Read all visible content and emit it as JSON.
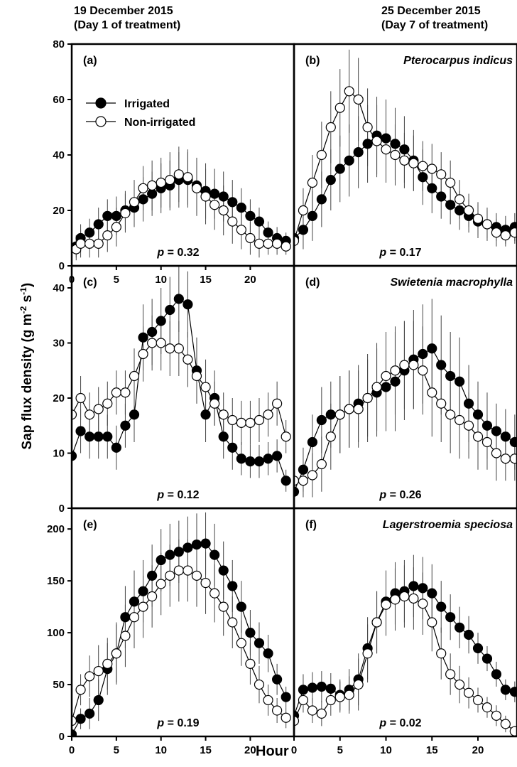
{
  "header": {
    "left_line1": "19 December 2015",
    "left_line2": "(Day 1 of treatment)",
    "right_line1": "25 December 2015",
    "right_line2": "(Day 7 of treatment)"
  },
  "axes": {
    "ylabel_main": "Sap flux density (g m",
    "ylabel_exp1": "-2",
    "ylabel_mid": " s",
    "ylabel_exp2": "-1",
    "ylabel_end": ")",
    "xlabel": "Hour"
  },
  "colors": {
    "irrigated": "#000000",
    "non_irrigated": "#ffffff",
    "line": "#000000"
  },
  "chart_data": [
    {
      "type": "line",
      "panel": "(a)",
      "species": "",
      "p_label": "p",
      "p_text": " = 0.32",
      "xlim": [
        0,
        24
      ],
      "ylim": [
        0,
        80
      ],
      "yticks": [
        0,
        20,
        40,
        60,
        80
      ],
      "xticks": [
        0,
        5,
        10,
        15,
        20
      ],
      "legend": [
        {
          "name": "Irrigated",
          "marker": "filled"
        },
        {
          "name": "Non-irrigated",
          "marker": "open"
        }
      ],
      "legend_placement": "top-left",
      "series": [
        {
          "name": "Irrigated",
          "marker": "filled",
          "x": [
            0.5,
            1,
            2,
            3,
            4,
            5,
            6,
            7,
            8,
            9,
            10,
            11,
            12,
            13,
            14,
            15,
            16,
            17,
            18,
            19,
            20,
            21,
            22,
            23,
            24
          ],
          "y": [
            7,
            10,
            12,
            15,
            18,
            18,
            20,
            21,
            24,
            26,
            28,
            29,
            31,
            31,
            29,
            27,
            26,
            25,
            23,
            21,
            18,
            16,
            12,
            10,
            9
          ],
          "err": [
            4,
            5,
            5,
            6,
            6,
            7,
            7,
            7,
            8,
            8,
            9,
            9,
            10,
            10,
            10,
            10,
            9,
            9,
            8,
            7,
            6,
            5,
            4,
            4,
            3
          ]
        },
        {
          "name": "Non-irrigated",
          "marker": "open",
          "x": [
            0.5,
            1,
            2,
            3,
            4,
            5,
            6,
            7,
            8,
            9,
            10,
            11,
            12,
            13,
            14,
            15,
            16,
            17,
            18,
            19,
            20,
            21,
            22,
            23,
            24
          ],
          "y": [
            6,
            8,
            8,
            8,
            11,
            14,
            19,
            23,
            28,
            29,
            30,
            31,
            33,
            32,
            28,
            25,
            22,
            20,
            16,
            13,
            10,
            8,
            8,
            8,
            7
          ],
          "err": [
            4,
            5,
            5,
            5,
            6,
            7,
            7,
            8,
            8,
            9,
            9,
            10,
            10,
            10,
            10,
            10,
            9,
            9,
            8,
            7,
            6,
            5,
            4,
            4,
            3
          ]
        }
      ]
    },
    {
      "type": "line",
      "panel": "(b)",
      "species": "Pterocarpus indicus",
      "p_label": "p",
      "p_text": " = 0.17",
      "xlim": [
        0,
        24
      ],
      "ylim": [
        0,
        80
      ],
      "yticks": [],
      "xticks": [],
      "series": [
        {
          "name": "Irrigated",
          "marker": "filled",
          "x": [
            0,
            1,
            2,
            3,
            4,
            5,
            6,
            7,
            8,
            9,
            10,
            11,
            12,
            13,
            14,
            15,
            16,
            17,
            18,
            19,
            20,
            21,
            22,
            23,
            24
          ],
          "y": [
            10,
            13,
            18,
            24,
            31,
            35,
            38,
            41,
            44,
            47,
            46,
            44,
            42,
            38,
            32,
            28,
            25,
            22,
            20,
            18,
            16,
            15,
            14,
            13,
            14
          ],
          "err": [
            5,
            7,
            9,
            10,
            11,
            12,
            13,
            13,
            14,
            14,
            14,
            13,
            12,
            11,
            10,
            9,
            8,
            7,
            7,
            6,
            6,
            6,
            5,
            5,
            5
          ]
        },
        {
          "name": "Non-irrigated",
          "marker": "open",
          "x": [
            0,
            1,
            2,
            3,
            4,
            5,
            6,
            7,
            8,
            9,
            10,
            11,
            12,
            13,
            14,
            15,
            16,
            17,
            18,
            19,
            20,
            21,
            22,
            23,
            24
          ],
          "y": [
            9,
            20,
            30,
            40,
            50,
            57,
            63,
            60,
            50,
            45,
            42,
            40,
            38,
            37,
            36,
            35,
            33,
            30,
            24,
            20,
            17,
            15,
            12,
            11,
            12
          ],
          "err": [
            5,
            8,
            10,
            12,
            13,
            14,
            15,
            15,
            14,
            13,
            12,
            11,
            10,
            10,
            9,
            9,
            8,
            8,
            7,
            6,
            6,
            5,
            5,
            4,
            4
          ]
        }
      ]
    },
    {
      "type": "line",
      "panel": "(c)",
      "species": "",
      "p_label": "p",
      "p_text": " = 0.12",
      "xlim": [
        0,
        24
      ],
      "ylim": [
        0,
        44
      ],
      "yticks": [
        0,
        10,
        20,
        30,
        40
      ],
      "xticks": [],
      "series": [
        {
          "name": "Irrigated",
          "marker": "filled",
          "x": [
            0,
            1,
            2,
            3,
            4,
            5,
            6,
            7,
            8,
            9,
            10,
            11,
            12,
            13,
            14,
            15,
            16,
            17,
            18,
            19,
            20,
            21,
            22,
            23,
            24
          ],
          "y": [
            9.5,
            14,
            13,
            13,
            13,
            11,
            15,
            17,
            31,
            32,
            34,
            36,
            38,
            37,
            25,
            17,
            20,
            13,
            11,
            9,
            8.5,
            8.5,
            9,
            9.5,
            5
          ],
          "err": [
            3,
            4,
            4,
            4,
            4,
            4,
            4,
            5,
            6,
            6,
            6,
            6,
            6,
            6,
            6,
            5,
            5,
            4,
            4,
            3,
            3,
            3,
            3,
            3,
            2
          ]
        },
        {
          "name": "Non-irrigated",
          "marker": "open",
          "x": [
            0,
            1,
            2,
            3,
            4,
            5,
            6,
            7,
            8,
            9,
            10,
            11,
            12,
            13,
            14,
            15,
            16,
            17,
            18,
            19,
            20,
            21,
            22,
            23,
            24
          ],
          "y": [
            17,
            20,
            17,
            18,
            19,
            21,
            21,
            24,
            28,
            30,
            30,
            29,
            29,
            27,
            24,
            22,
            19,
            17,
            16,
            15.5,
            15.5,
            16,
            17,
            19,
            13
          ],
          "err": [
            4,
            4,
            4,
            4,
            4,
            4,
            4,
            5,
            5,
            5,
            5,
            5,
            5,
            5,
            5,
            5,
            4,
            4,
            4,
            4,
            4,
            4,
            4,
            4,
            3
          ]
        }
      ]
    },
    {
      "type": "line",
      "panel": "(d)",
      "species": "Swietenia macrophylla",
      "p_label": "p",
      "p_text": " = 0.26",
      "xlim": [
        0,
        24
      ],
      "ylim": [
        0,
        44
      ],
      "yticks": [],
      "xticks": [],
      "series": [
        {
          "name": "Irrigated",
          "marker": "filled",
          "x": [
            0,
            1,
            2,
            3,
            4,
            5,
            6,
            7,
            8,
            9,
            10,
            11,
            12,
            13,
            14,
            15,
            16,
            17,
            18,
            19,
            20,
            21,
            22,
            23,
            24
          ],
          "y": [
            3,
            7,
            12,
            16,
            17,
            17,
            18,
            19,
            20,
            21,
            22,
            23,
            25,
            27,
            28,
            29,
            26,
            24,
            23,
            19,
            17,
            15,
            14,
            13,
            12
          ],
          "err": [
            3,
            4,
            5,
            6,
            6,
            7,
            7,
            7,
            8,
            8,
            8,
            9,
            9,
            9,
            9,
            9,
            9,
            8,
            8,
            7,
            6,
            6,
            5,
            5,
            5
          ]
        },
        {
          "name": "Non-irrigated",
          "marker": "open",
          "x": [
            0,
            1,
            2,
            3,
            4,
            5,
            6,
            7,
            8,
            9,
            10,
            11,
            12,
            13,
            14,
            15,
            16,
            17,
            18,
            19,
            20,
            21,
            22,
            23,
            24
          ],
          "y": [
            5,
            5,
            6,
            8,
            13,
            17,
            18,
            18,
            20,
            22,
            24,
            25,
            26,
            26,
            25,
            21,
            19,
            17,
            16,
            15,
            13,
            12,
            10,
            9,
            9
          ],
          "err": [
            3,
            3,
            4,
            5,
            6,
            7,
            7,
            7,
            7,
            8,
            8,
            8,
            8,
            8,
            8,
            8,
            7,
            7,
            7,
            6,
            6,
            5,
            5,
            4,
            4
          ]
        }
      ]
    },
    {
      "type": "line",
      "panel": "(e)",
      "species": "",
      "p_label": "p",
      "p_text": " = 0.19",
      "xlim": [
        0,
        24
      ],
      "ylim": [
        0,
        220
      ],
      "yticks": [
        0,
        50,
        100,
        150,
        200
      ],
      "xticks": [
        0,
        5,
        10,
        15,
        20
      ],
      "series": [
        {
          "name": "Irrigated",
          "marker": "filled",
          "x": [
            0,
            1,
            2,
            3,
            4,
            5,
            6,
            7,
            8,
            9,
            10,
            11,
            12,
            13,
            14,
            15,
            16,
            17,
            18,
            19,
            20,
            21,
            22,
            23,
            24
          ],
          "y": [
            2,
            17,
            22,
            35,
            65,
            80,
            115,
            130,
            140,
            155,
            170,
            175,
            178,
            182,
            185,
            186,
            175,
            160,
            145,
            125,
            100,
            90,
            80,
            55,
            38
          ],
          "err": [
            5,
            10,
            15,
            20,
            25,
            30,
            30,
            30,
            30,
            30,
            30,
            30,
            30,
            30,
            30,
            30,
            30,
            28,
            25,
            25,
            22,
            20,
            18,
            15,
            10
          ]
        },
        {
          "name": "Non-irrigated",
          "marker": "open",
          "x": [
            0,
            1,
            2,
            3,
            4,
            5,
            6,
            7,
            8,
            9,
            10,
            11,
            12,
            13,
            14,
            15,
            16,
            17,
            18,
            19,
            20,
            21,
            22,
            23,
            24
          ],
          "y": [
            15,
            45,
            58,
            63,
            70,
            80,
            97,
            115,
            125,
            135,
            147,
            155,
            160,
            160,
            155,
            148,
            138,
            125,
            110,
            90,
            70,
            50,
            35,
            25,
            18
          ],
          "err": [
            8,
            15,
            20,
            25,
            25,
            28,
            30,
            30,
            30,
            30,
            30,
            30,
            30,
            30,
            30,
            30,
            28,
            28,
            25,
            22,
            20,
            18,
            15,
            12,
            10
          ]
        }
      ]
    },
    {
      "type": "line",
      "panel": "(f)",
      "species": "Lagerstroemia speciosa",
      "p_label": "p",
      "p_text": " = 0.02",
      "xlim": [
        0,
        24
      ],
      "ylim": [
        0,
        220
      ],
      "yticks": [],
      "xticks": [
        0,
        5,
        10,
        15,
        20
      ],
      "series": [
        {
          "name": "Irrigated",
          "marker": "filled",
          "x": [
            0,
            1,
            2,
            3,
            4,
            5,
            6,
            7,
            8,
            9,
            10,
            11,
            12,
            13,
            14,
            15,
            16,
            17,
            18,
            19,
            20,
            21,
            22,
            23,
            24
          ],
          "y": [
            20,
            45,
            47,
            48,
            46,
            40,
            45,
            55,
            85,
            110,
            130,
            138,
            140,
            145,
            143,
            138,
            125,
            115,
            105,
            98,
            85,
            75,
            60,
            45,
            43
          ],
          "err": [
            10,
            15,
            15,
            15,
            15,
            15,
            20,
            25,
            30,
            30,
            30,
            30,
            30,
            30,
            30,
            28,
            25,
            22,
            20,
            18,
            15,
            12,
            12,
            10,
            10
          ]
        },
        {
          "name": "Non-irrigated",
          "marker": "open",
          "x": [
            0,
            1,
            2,
            3,
            4,
            5,
            6,
            7,
            8,
            9,
            10,
            11,
            12,
            13,
            14,
            15,
            16,
            17,
            18,
            19,
            20,
            21,
            22,
            23,
            24
          ],
          "y": [
            15,
            35,
            25,
            22,
            35,
            38,
            40,
            50,
            80,
            110,
            127,
            132,
            135,
            133,
            128,
            110,
            80,
            60,
            50,
            42,
            35,
            28,
            20,
            12,
            5
          ],
          "err": [
            10,
            12,
            12,
            12,
            15,
            15,
            18,
            25,
            28,
            30,
            30,
            30,
            30,
            30,
            30,
            28,
            25,
            20,
            18,
            15,
            12,
            10,
            10,
            8,
            5
          ]
        }
      ]
    }
  ]
}
